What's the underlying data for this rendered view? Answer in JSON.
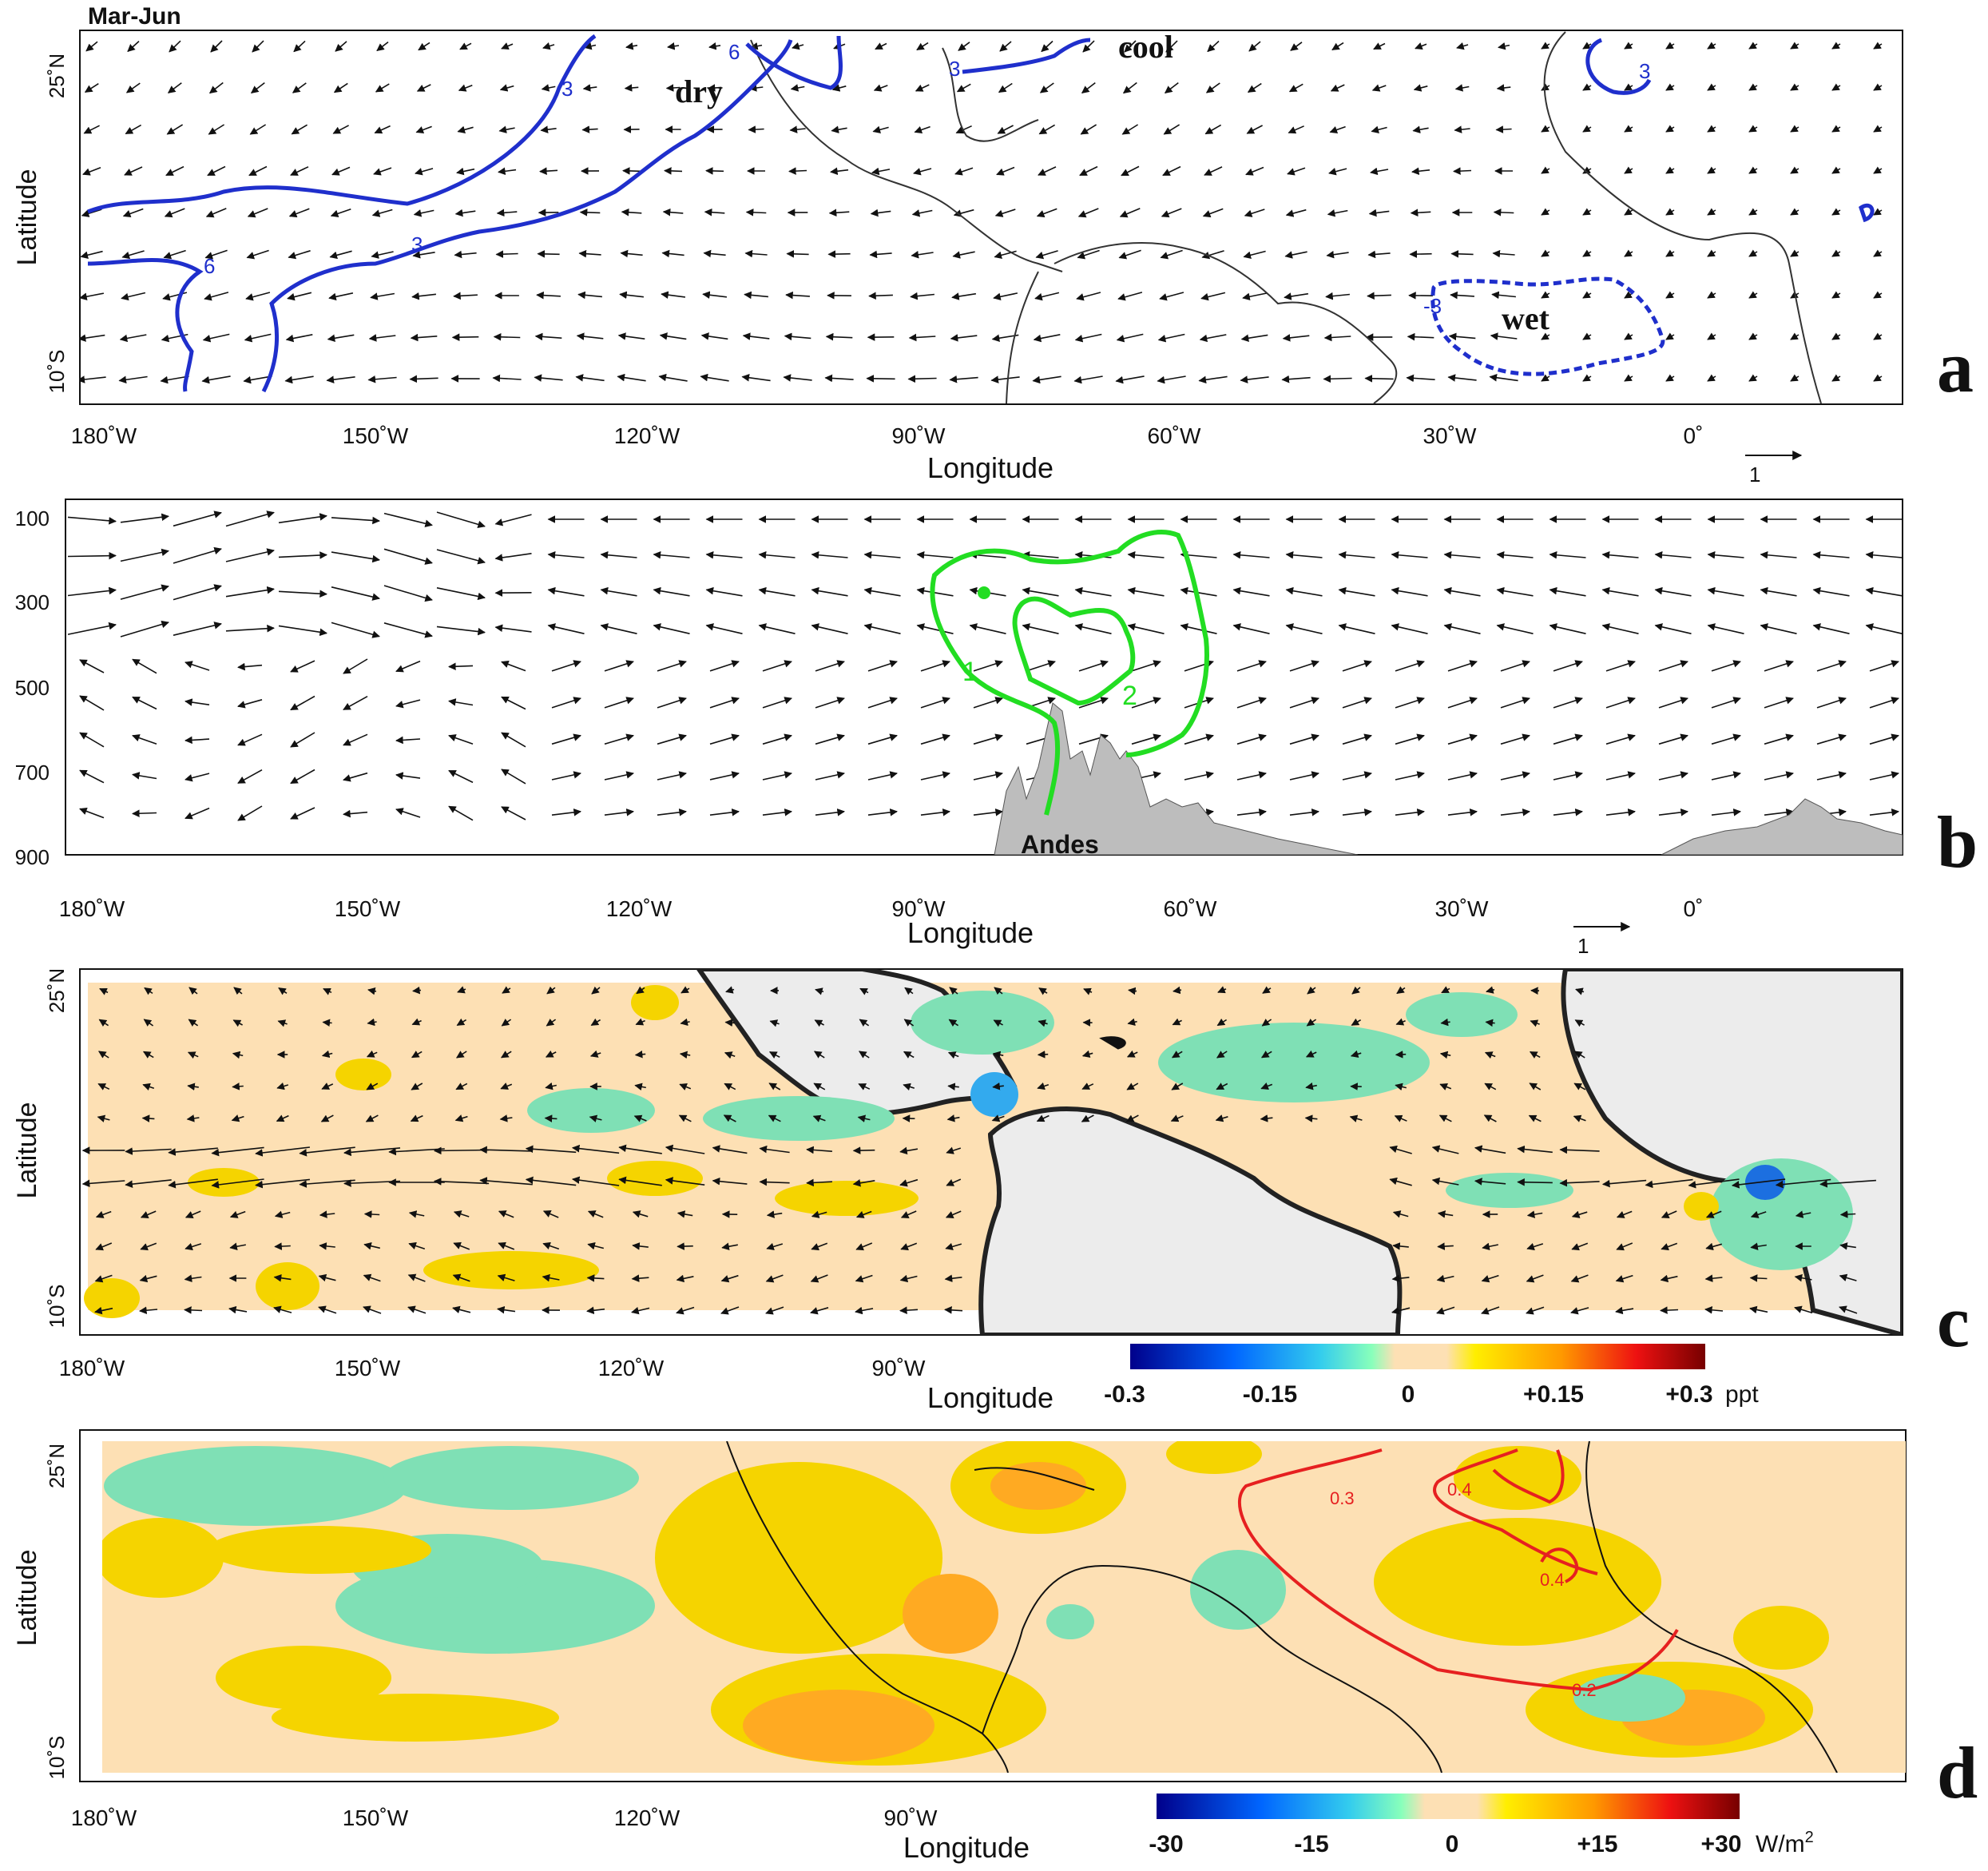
{
  "figure": {
    "season": "Mar-Jun",
    "xlabel": "Longitude",
    "ylabel_lat": "Latitude",
    "x_ticks": [
      "180˚W",
      "150˚W",
      "120˚W",
      "90˚W",
      "60˚W",
      "30˚W",
      "0˚"
    ],
    "x_ticks_short": [
      "180˚W",
      "150˚W",
      "120˚W",
      "90˚W"
    ],
    "lat_ticks": [
      "25˚N",
      "10˚S"
    ],
    "colors": {
      "contour_a": "#1f2fcc",
      "contour_b": "#22dd22",
      "contour_d": "#e62020",
      "land_fill_c": "#ececec",
      "orography": "#bdbdbd",
      "ocean_zero": "#fde0b4",
      "anom_pos": "#f5d400",
      "anom_neg": "#7fe0b5"
    }
  },
  "chart_data": [
    {
      "panel": "a",
      "type": "contour",
      "title": "Mar-Jun",
      "xlabel": "Longitude",
      "ylabel": "Latitude",
      "xlim": [
        -180,
        45
      ],
      "ylim": [
        -10,
        25
      ],
      "contour_labels": [
        "3",
        "6",
        "6",
        "3",
        "3",
        "3",
        "-3"
      ],
      "annotations": [
        "dry",
        "cool",
        "wet"
      ],
      "vector_scale_label": "1",
      "panel_label": "a"
    },
    {
      "panel": "b",
      "type": "contour",
      "xlabel": "Longitude",
      "ylabel": "",
      "y_ticks": [
        "100",
        "300",
        "500",
        "700",
        "900"
      ],
      "ylim": [
        900,
        100
      ],
      "contour_labels": [
        "1",
        "2"
      ],
      "annotations": [
        "Andes"
      ],
      "vector_scale_label": "1",
      "panel_label": "b"
    },
    {
      "panel": "c",
      "type": "heatmap",
      "xlabel": "Longitude",
      "ylabel": "Latitude",
      "colorbar": {
        "ticks": [
          "-0.3",
          "-0.15",
          "0",
          "+0.15",
          "+0.3"
        ],
        "unit": "ppt",
        "range": [
          -0.3,
          0.3
        ]
      },
      "panel_label": "c"
    },
    {
      "panel": "d",
      "type": "heatmap",
      "xlabel": "Longitude",
      "ylabel": "Latitude",
      "contour_labels": [
        "0.3",
        "0.4",
        "0.4",
        "0.2"
      ],
      "colorbar": {
        "ticks": [
          "-30",
          "-15",
          "0",
          "+15",
          "+30"
        ],
        "unit": "W/m",
        "unit_sup": "2",
        "range": [
          -30,
          30
        ]
      },
      "panel_label": "d"
    }
  ]
}
